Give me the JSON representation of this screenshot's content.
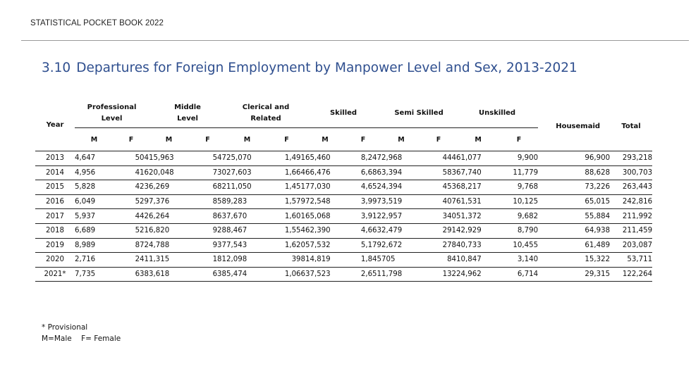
{
  "header": {
    "text": "STATISTICAL POCKET BOOK 2022"
  },
  "title": {
    "number": "3.10",
    "text": "Departures for Foreign Employment by Manpower Level and Sex, 2013-2021"
  },
  "table": {
    "year_label": "Year",
    "groups": [
      {
        "line1": "Professional",
        "line2": "Level"
      },
      {
        "line1": "Middle",
        "line2": "Level"
      },
      {
        "line1": "Clerical and",
        "line2": "Related"
      },
      {
        "line1": "Skilled",
        "line2": ""
      },
      {
        "line1": "Semi Skilled",
        "line2": ""
      },
      {
        "line1": "Unskilled",
        "line2": ""
      }
    ],
    "housemaid_label": "Housemaid",
    "total_label": "Total",
    "sub_m": "M",
    "sub_f": "F",
    "rows": [
      {
        "year": "2013",
        "values": [
          "4,647",
          "504",
          "15,963",
          "547",
          "25,070",
          "1,491",
          "65,460",
          "8,247",
          "2,968",
          "444",
          "61,077",
          "9,900"
        ],
        "housemaid": "96,900",
        "total": "293,218"
      },
      {
        "year": "2014",
        "values": [
          "4,956",
          "416",
          "20,048",
          "730",
          "27,603",
          "1,664",
          "66,476",
          "6,686",
          "3,394",
          "583",
          "67,740",
          "11,779"
        ],
        "housemaid": "88,628",
        "total": "300,703"
      },
      {
        "year": "2015",
        "values": [
          "5,828",
          "423",
          "6,269",
          "682",
          "11,050",
          "1,451",
          "77,030",
          "4,652",
          "4,394",
          "453",
          "68,217",
          "9,768"
        ],
        "housemaid": "73,226",
        "total": "263,443"
      },
      {
        "year": "2016",
        "values": [
          "6,049",
          "529",
          "7,376",
          "858",
          "9,283",
          "1,579",
          "72,548",
          "3,997",
          "3,519",
          "407",
          "61,531",
          "10,125"
        ],
        "housemaid": "65,015",
        "total": "242,816"
      },
      {
        "year": "2017",
        "values": [
          "5,937",
          "442",
          "6,264",
          "863",
          "7,670",
          "1,601",
          "65,068",
          "3,912",
          "2,957",
          "340",
          "51,372",
          "9,682"
        ],
        "housemaid": "55,884",
        "total": "211,992"
      },
      {
        "year": "2018",
        "values": [
          "6,689",
          "521",
          "6,820",
          "928",
          "8,467",
          "1,554",
          "62,390",
          "4,663",
          "2,479",
          "291",
          "42,929",
          "8,790"
        ],
        "housemaid": "64,938",
        "total": "211,459"
      },
      {
        "year": "2019",
        "values": [
          "8,989",
          "872",
          "4,788",
          "937",
          "7,543",
          "1,620",
          "57,532",
          "5,179",
          "2,672",
          "278",
          "40,733",
          "10,455"
        ],
        "housemaid": "61,489",
        "total": "203,087"
      },
      {
        "year": "2020",
        "values": [
          "2,716",
          "241",
          "1,315",
          "181",
          "2,098",
          "398",
          "14,819",
          "1,845",
          "705",
          "84",
          "10,847",
          "3,140"
        ],
        "housemaid": "15,322",
        "total": "53,711"
      },
      {
        "year": "2021*",
        "values": [
          "7,735",
          "638",
          "3,618",
          "638",
          "5,474",
          "1,066",
          "37,523",
          "2,651",
          "1,798",
          "132",
          "24,962",
          "6,714"
        ],
        "housemaid": "29,315",
        "total": "122,264"
      }
    ]
  },
  "notes": {
    "provisional": "* Provisional",
    "legend": "M=Male    F= Female"
  }
}
